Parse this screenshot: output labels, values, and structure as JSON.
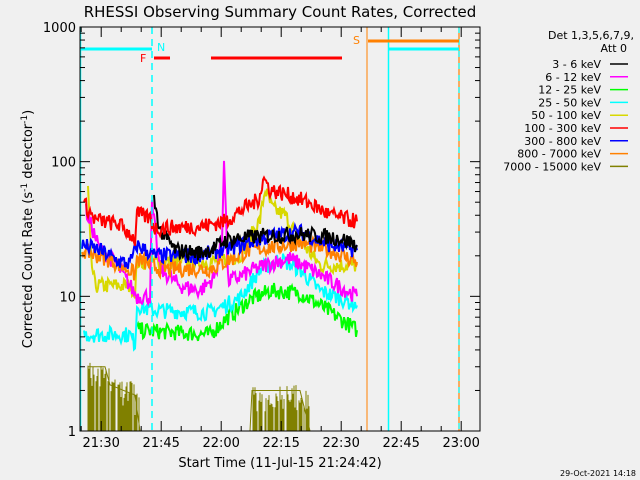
{
  "chart_data": {
    "type": "line",
    "title": "RHESSI Observing Summary Count Rates, Corrected",
    "xlabel": "Start Time (11-Jul-15 21:24:42)",
    "ylabel": "Corrected Count Rate (s⁻¹ detector⁻¹)",
    "ylabel_main": "Corrected Count Rate (s",
    "ylabel_mid": " detector",
    "ylabel_close": ")",
    "ylabel_sup": "-1",
    "x_units": "minutes since 21:24:42",
    "xlim": [
      0,
      100
    ],
    "ylim": [
      1,
      1000
    ],
    "yscale": "log",
    "xticks": [
      {
        "t": 5.3,
        "label": "21:30"
      },
      {
        "t": 20.3,
        "label": "21:45"
      },
      {
        "t": 35.3,
        "label": "22:00"
      },
      {
        "t": 50.3,
        "label": "22:15"
      },
      {
        "t": 65.3,
        "label": "22:30"
      },
      {
        "t": 80.3,
        "label": "22:45"
      },
      {
        "t": 95.3,
        "label": "23:00"
      }
    ],
    "yticks": [
      {
        "v": 1,
        "label": "1"
      },
      {
        "v": 10,
        "label": "10"
      },
      {
        "v": 100,
        "label": "100"
      },
      {
        "v": 1000,
        "label": "1000"
      }
    ],
    "legend": {
      "header1": "Det 1,3,5,6,7,9,",
      "header2": "Att 0",
      "placement": "right"
    },
    "series": [
      {
        "name": "3 - 6 keV",
        "color": "#000000",
        "points": [
          [
            18.5,
            52
          ],
          [
            20,
            31
          ],
          [
            23.75,
            22
          ],
          [
            30,
            21
          ],
          [
            33.75,
            23
          ],
          [
            36.25,
            26
          ],
          [
            40,
            27
          ],
          [
            45,
            28
          ],
          [
            55,
            29
          ],
          [
            65,
            27
          ],
          [
            69.25,
            24
          ]
        ]
      },
      {
        "name": "6 - 12 keV",
        "color": "#ff00ff",
        "points": [
          [
            1.5,
            43
          ],
          [
            5,
            22
          ],
          [
            8.75,
            18
          ],
          [
            12.5,
            12
          ],
          [
            14.25,
            10
          ],
          [
            17.5,
            10
          ],
          [
            18,
            47
          ],
          [
            20,
            16
          ],
          [
            25,
            12
          ],
          [
            30,
            11
          ],
          [
            33.75,
            14
          ],
          [
            35.5,
            26
          ],
          [
            36,
            113
          ],
          [
            37,
            13
          ],
          [
            40,
            14
          ],
          [
            43.75,
            16
          ],
          [
            48.75,
            18
          ],
          [
            52.5,
            19
          ],
          [
            57.5,
            16
          ],
          [
            62.5,
            13
          ],
          [
            69.25,
            10
          ]
        ]
      },
      {
        "name": "12 - 25 keV",
        "color": "#00ff00",
        "points": [
          [
            14.25,
            5.6
          ],
          [
            32.5,
            5.2
          ],
          [
            36.25,
            6.7
          ],
          [
            42.5,
            9.4
          ],
          [
            47.5,
            11
          ],
          [
            55,
            10.6
          ],
          [
            60,
            8.6
          ],
          [
            69.25,
            5.6
          ]
        ]
      },
      {
        "name": "25 - 50 keV",
        "color": "#00ffff",
        "points": [
          [
            1,
            5.2
          ],
          [
            12.5,
            5.2
          ],
          [
            13.75,
            4.4
          ],
          [
            14.25,
            8.6
          ],
          [
            17.5,
            7.9
          ],
          [
            32.5,
            7.6
          ],
          [
            36.25,
            8.6
          ],
          [
            40,
            9.7
          ],
          [
            45,
            15.7
          ],
          [
            50,
            19
          ],
          [
            55,
            15.7
          ],
          [
            60,
            11
          ],
          [
            65,
            9.7
          ],
          [
            69.25,
            8.6
          ]
        ]
      },
      {
        "name": "50 - 100 keV",
        "color": "#d8d800",
        "points": [
          [
            2,
            62
          ],
          [
            2.75,
            18.6
          ],
          [
            3.75,
            12
          ],
          [
            12.5,
            12
          ],
          [
            13.75,
            11
          ],
          [
            14.25,
            18
          ],
          [
            32.5,
            18
          ],
          [
            40,
            20
          ],
          [
            45,
            37
          ],
          [
            46.25,
            62
          ],
          [
            48,
            45
          ],
          [
            51.25,
            40
          ],
          [
            55,
            26
          ],
          [
            60,
            17
          ],
          [
            69.25,
            17
          ]
        ]
      },
      {
        "name": "100 - 300 keV",
        "color": "#ff0000",
        "points": [
          [
            1,
            49
          ],
          [
            3.75,
            37
          ],
          [
            10,
            34
          ],
          [
            12.5,
            29
          ],
          [
            13.75,
            26
          ],
          [
            14.25,
            41
          ],
          [
            17.5,
            38
          ],
          [
            18.75,
            32
          ],
          [
            30,
            33
          ],
          [
            36.25,
            36
          ],
          [
            40,
            43
          ],
          [
            44.5,
            52
          ],
          [
            46,
            75
          ],
          [
            47.5,
            62
          ],
          [
            52.5,
            56
          ],
          [
            57.5,
            49
          ],
          [
            62.5,
            40
          ],
          [
            69.25,
            36
          ]
        ]
      },
      {
        "name": "300 - 800 keV",
        "color": "#0000ff",
        "points": [
          [
            0.5,
            24
          ],
          [
            5,
            22
          ],
          [
            10,
            18
          ],
          [
            12.5,
            17.5
          ],
          [
            14.25,
            24
          ],
          [
            18.75,
            20
          ],
          [
            30,
            20
          ],
          [
            35,
            22
          ],
          [
            40,
            24
          ],
          [
            47.5,
            28
          ],
          [
            55,
            30
          ],
          [
            62.5,
            24
          ],
          [
            69.25,
            22
          ]
        ]
      },
      {
        "name": "800 - 7000 keV",
        "color": "#ff8000",
        "points": [
          [
            0.5,
            22
          ],
          [
            7.5,
            18.6
          ],
          [
            12.5,
            15.7
          ],
          [
            13.75,
            14.4
          ],
          [
            14.25,
            19
          ],
          [
            20,
            16
          ],
          [
            32.5,
            16
          ],
          [
            36.25,
            18
          ],
          [
            42.5,
            22
          ],
          [
            55,
            25
          ],
          [
            62.5,
            22
          ],
          [
            69.25,
            18
          ]
        ]
      },
      {
        "name": "7000 - 15000 keV",
        "color": "#808000",
        "points": [
          [
            2,
            3
          ],
          [
            6.25,
            3
          ],
          [
            7.5,
            2.2
          ],
          [
            13.75,
            1.85
          ],
          [
            15,
            1
          ],
          [
            42.5,
            1
          ],
          [
            43,
            2
          ],
          [
            55,
            2
          ],
          [
            57.5,
            1
          ],
          [
            70,
            1
          ]
        ]
      }
    ],
    "annotations": {
      "night_label": "N",
      "flare_label": "F",
      "saa_label": "S",
      "night_color": "#00ffff",
      "flare_color": "#ff0000",
      "saa_color": "#ff8000",
      "night_intervals": [
        [
          0,
          18
        ],
        [
          77,
          94.75
        ]
      ],
      "flare_intervals": [
        [
          18.5,
          22.5
        ],
        [
          32.75,
          65.5
        ]
      ],
      "saa_intervals": [
        [
          72,
          94.75
        ]
      ],
      "night_lines_solid": [
        0,
        77
      ],
      "night_lines_dashed": [
        18
      ],
      "saa_lines_solid": [
        71.75
      ],
      "end_line_dashed": [
        94.75
      ]
    }
  },
  "timestamp": "29-Oct-2021 14:18"
}
